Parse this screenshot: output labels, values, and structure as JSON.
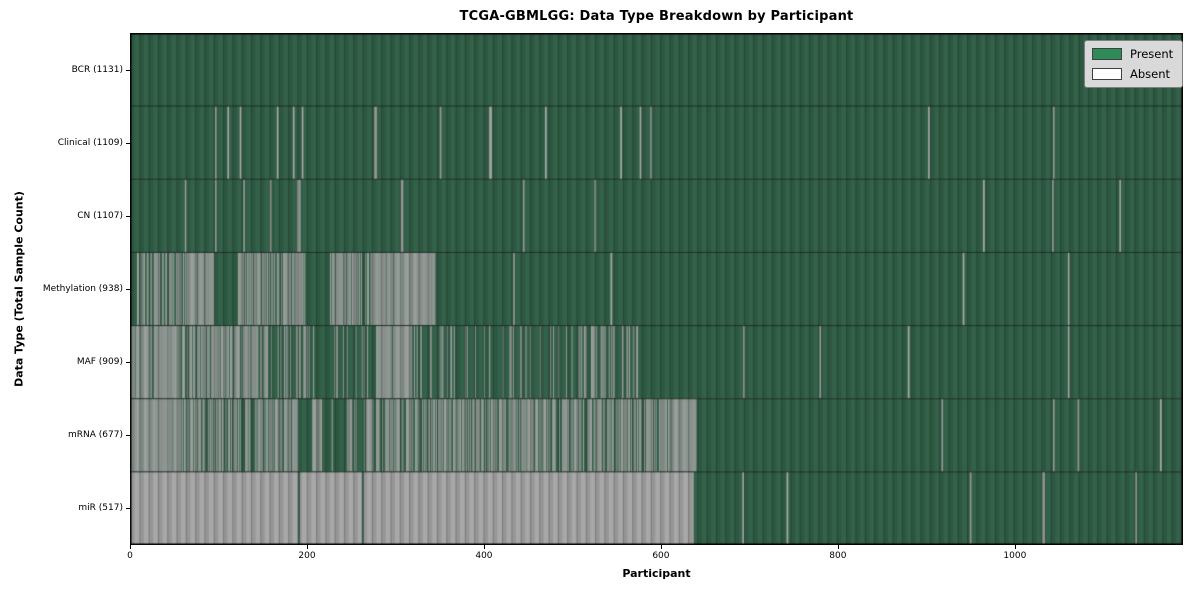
{
  "chart_data": {
    "type": "heatmap",
    "title": "TCGA-GBMLGG: Data Type Breakdown by Participant",
    "xlabel": "Participant",
    "ylabel": "Data Type (Total Sample Count)",
    "x_ticks": [
      0,
      200,
      400,
      600,
      800,
      1000
    ],
    "x_max": 1190,
    "grid": false,
    "legend_position": "upper right",
    "legend": [
      {
        "label": "Present",
        "color": "#2e8b57"
      },
      {
        "label": "Absent",
        "color": "#ffffff"
      }
    ],
    "colors": {
      "present_fill": "#336149",
      "absent_fill": "#a8a8a8",
      "row_divider": "rgba(15,25,20,0.8)",
      "plot_border": "#000000"
    },
    "rows": [
      {
        "label": "BCR",
        "count": 1131,
        "segments": [
          [
            0,
            1190,
            1
          ]
        ],
        "absent_lines": []
      },
      {
        "label": "Clinical",
        "count": 1109,
        "segments": [
          [
            0,
            1190,
            1
          ]
        ],
        "absent_lines": [
          96,
          110,
          124,
          166,
          184,
          194,
          276,
          277,
          350,
          406,
          407,
          469,
          554,
          576,
          588,
          902,
          1043
        ]
      },
      {
        "label": "CN",
        "count": 1107,
        "segments": [
          [
            0,
            1190,
            1
          ]
        ],
        "absent_lines": [
          62,
          96,
          128,
          158,
          189,
          190,
          191,
          306,
          307,
          444,
          525,
          964,
          1042,
          1118
        ]
      },
      {
        "label": "Methylation",
        "count": 938,
        "segments": [
          [
            0,
            62,
            0.5
          ],
          [
            62,
            95,
            0.03
          ],
          [
            95,
            120,
            1
          ],
          [
            120,
            198,
            0.3
          ],
          [
            198,
            226,
            1
          ],
          [
            226,
            272,
            0.25
          ],
          [
            272,
            345,
            0.02
          ],
          [
            345,
            1190,
            1
          ]
        ],
        "absent_lines": [
          433,
          543,
          941,
          1060
        ]
      },
      {
        "label": "MAF",
        "count": 909,
        "segments": [
          [
            0,
            55,
            0.06
          ],
          [
            55,
            156,
            0.3
          ],
          [
            156,
            280,
            0.75
          ],
          [
            280,
            318,
            0.07
          ],
          [
            318,
            500,
            0.82
          ],
          [
            500,
            575,
            0.7
          ],
          [
            575,
            1190,
            1
          ]
        ],
        "absent_lines": [
          693,
          779,
          879,
          1060
        ]
      },
      {
        "label": "mRNA",
        "count": 677,
        "segments": [
          [
            0,
            56,
            0.07
          ],
          [
            56,
            190,
            0.33
          ],
          [
            190,
            206,
            1
          ],
          [
            206,
            220,
            0.4
          ],
          [
            220,
            245,
            0.88
          ],
          [
            245,
            612,
            0.33
          ],
          [
            612,
            640,
            0.02
          ],
          [
            640,
            1190,
            1
          ]
        ],
        "absent_lines": [
          917,
          1043,
          1071,
          1164
        ]
      },
      {
        "label": "miR",
        "count": 517,
        "segments": [
          [
            0,
            190,
            0
          ],
          [
            190,
            192,
            1
          ],
          [
            192,
            262,
            0
          ],
          [
            262,
            264,
            1
          ],
          [
            264,
            637,
            0
          ],
          [
            637,
            1190,
            1
          ]
        ],
        "absent_lines": [
          692,
          742,
          949,
          1031,
          1032,
          1136
        ]
      }
    ]
  },
  "layout_values": {
    "ytick_format": "{label} ({count})"
  }
}
